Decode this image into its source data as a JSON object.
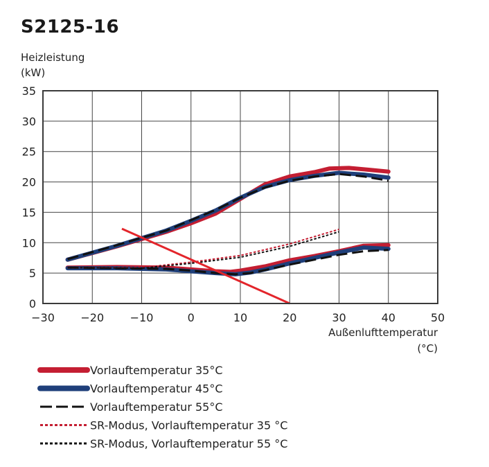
{
  "chart_data": {
    "type": "line",
    "title": "S2125-16",
    "ylabel": [
      "Heizleistung",
      "(kW)"
    ],
    "xlabel": [
      "Außenlufttemperatur",
      "(°C)"
    ],
    "xlim": [
      -30,
      50
    ],
    "ylim": [
      0,
      35
    ],
    "xticks": [
      -30,
      -20,
      -10,
      0,
      10,
      20,
      30,
      40,
      50
    ],
    "yticks": [
      0,
      5,
      10,
      15,
      20,
      25,
      30,
      35
    ],
    "grid": true,
    "legend_position": "bottom",
    "series": [
      {
        "name": "Vorlauftemperatur 35°C",
        "color": "#c41e32",
        "style": "solid-thick",
        "segments": [
          [
            [
              -25,
              7.2
            ],
            [
              -15,
              9.4
            ],
            [
              -5,
              11.8
            ],
            [
              0,
              13.2
            ],
            [
              5,
              14.8
            ],
            [
              10,
              17.2
            ],
            [
              15,
              19.6
            ],
            [
              20,
              20.9
            ],
            [
              25,
              21.6
            ],
            [
              28,
              22.2
            ],
            [
              32,
              22.3
            ],
            [
              36,
              22.0
            ],
            [
              40,
              21.7
            ]
          ],
          [
            [
              -25,
              5.9
            ],
            [
              -15,
              6.0
            ],
            [
              -5,
              5.9
            ],
            [
              0,
              5.6
            ],
            [
              5,
              5.3
            ],
            [
              8,
              5.2
            ],
            [
              10,
              5.4
            ],
            [
              15,
              6.1
            ],
            [
              20,
              7.1
            ],
            [
              25,
              7.8
            ],
            [
              30,
              8.6
            ],
            [
              35,
              9.5
            ],
            [
              40,
              9.6
            ]
          ]
        ]
      },
      {
        "name": "Vorlauftemperatur 45°C",
        "color": "#1f3f7a",
        "style": "solid-thick",
        "segments": [
          [
            [
              -25,
              7.2
            ],
            [
              -15,
              9.5
            ],
            [
              -5,
              12.0
            ],
            [
              0,
              13.6
            ],
            [
              5,
              15.3
            ],
            [
              10,
              17.4
            ],
            [
              15,
              19.2
            ],
            [
              20,
              20.3
            ],
            [
              25,
              21.0
            ],
            [
              30,
              21.5
            ],
            [
              35,
              21.2
            ],
            [
              40,
              20.7
            ]
          ],
          [
            [
              -25,
              5.8
            ],
            [
              -15,
              5.8
            ],
            [
              -5,
              5.6
            ],
            [
              0,
              5.3
            ],
            [
              5,
              5.0
            ],
            [
              9,
              4.8
            ],
            [
              12,
              5.1
            ],
            [
              15,
              5.6
            ],
            [
              20,
              6.6
            ],
            [
              25,
              7.5
            ],
            [
              30,
              8.4
            ],
            [
              35,
              9.2
            ],
            [
              40,
              9.0
            ]
          ]
        ]
      },
      {
        "name": "Vorlauftemperatur 55°C",
        "color": "#111111",
        "style": "dashed",
        "segments": [
          [
            [
              -25,
              7.3
            ],
            [
              -15,
              9.6
            ],
            [
              -5,
              12.0
            ],
            [
              0,
              13.7
            ],
            [
              5,
              15.4
            ],
            [
              10,
              17.4
            ],
            [
              15,
              19.1
            ],
            [
              20,
              20.2
            ],
            [
              25,
              20.9
            ],
            [
              30,
              21.3
            ],
            [
              35,
              20.9
            ],
            [
              40,
              20.2
            ]
          ],
          [
            [
              -25,
              5.9
            ],
            [
              -15,
              5.8
            ],
            [
              -5,
              5.7
            ],
            [
              0,
              5.4
            ],
            [
              5,
              5.0
            ],
            [
              9,
              4.8
            ],
            [
              12,
              5.0
            ],
            [
              15,
              5.5
            ],
            [
              20,
              6.4
            ],
            [
              25,
              7.2
            ],
            [
              30,
              8.0
            ],
            [
              35,
              8.6
            ],
            [
              40,
              8.8
            ]
          ]
        ]
      },
      {
        "name": "SR-Modus, Vorlauftemperatur 35 °C",
        "color": "#c41e32",
        "style": "dotted",
        "segments": [
          [
            [
              -25,
              5.9
            ],
            [
              -10,
              5.9
            ],
            [
              0,
              6.8
            ],
            [
              10,
              7.9
            ],
            [
              20,
              9.8
            ],
            [
              30,
              12.2
            ]
          ]
        ]
      },
      {
        "name": "SR-Modus, Vorlauftemperatur 55 °C",
        "color": "#111111",
        "style": "dotted",
        "segments": [
          [
            [
              -25,
              5.9
            ],
            [
              -10,
              5.8
            ],
            [
              0,
              6.6
            ],
            [
              10,
              7.6
            ],
            [
              20,
              9.4
            ],
            [
              30,
              11.8
            ]
          ]
        ]
      }
    ],
    "annotation_line": {
      "color": "#e3252b",
      "points": [
        [
          -14,
          12.3
        ],
        [
          20,
          0
        ]
      ]
    }
  }
}
